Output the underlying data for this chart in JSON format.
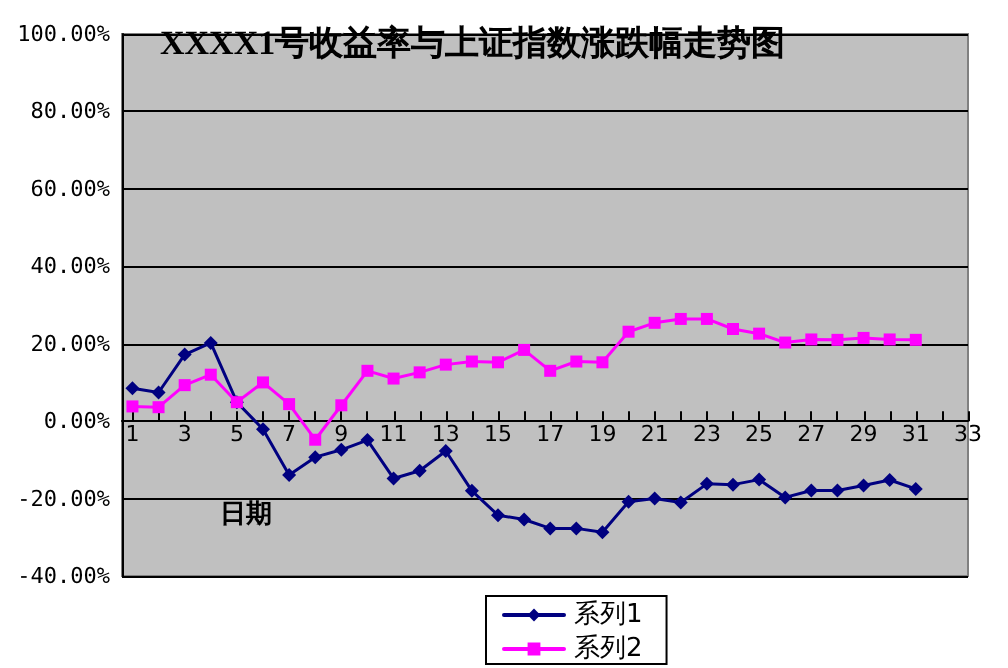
{
  "chart_data": {
    "type": "line",
    "title": "XXXX1号收益率与上证指数涨跌幅走势图",
    "xlabel": "日期",
    "x": [
      1,
      2,
      3,
      4,
      5,
      6,
      7,
      8,
      9,
      10,
      11,
      12,
      13,
      14,
      15,
      16,
      17,
      18,
      19,
      20,
      21,
      22,
      23,
      24,
      25,
      26,
      27,
      28,
      29,
      30,
      31
    ],
    "series": [
      {
        "name": "系列1",
        "color": "#000080",
        "marker": "diamond",
        "values": [
          8.5,
          7.4,
          17.2,
          20.2,
          4.9,
          -2.1,
          -13.9,
          -9.3,
          -7.4,
          -4.9,
          -14.8,
          -12.8,
          -7.7,
          -18,
          -24.3,
          -25.4,
          -27.7,
          -27.7,
          -28.7,
          -20.8,
          -20,
          -21,
          -16.2,
          -16.4,
          -15.1,
          -19.7,
          -17.9,
          -17.9,
          -16.6,
          -15.2,
          -17.5
        ]
      },
      {
        "name": "系列2",
        "color": "#ff00ff",
        "marker": "square",
        "values": [
          3.8,
          3.6,
          9.3,
          12,
          4.9,
          10,
          4.4,
          -4.8,
          4.1,
          13,
          11,
          12.6,
          14.6,
          15.4,
          15.2,
          18.4,
          13,
          15.4,
          15.2,
          23.1,
          25.4,
          26.4,
          26.4,
          23.8,
          22.6,
          20.3,
          21.1,
          21,
          21.5,
          21.1,
          21
        ]
      }
    ],
    "xlim": [
      0.6,
      33
    ],
    "xticks": [
      1,
      3,
      5,
      7,
      9,
      11,
      13,
      15,
      17,
      19,
      21,
      23,
      25,
      27,
      29,
      31,
      33
    ],
    "ylim": [
      -40,
      100
    ],
    "yticks": [
      {
        "value": -40,
        "label": "-40.00%"
      },
      {
        "value": -20,
        "label": "-20.00%"
      },
      {
        "value": 0,
        "label": "0.00%"
      },
      {
        "value": 20,
        "label": "20.00%"
      },
      {
        "value": 40,
        "label": "40.00%"
      },
      {
        "value": 60,
        "label": "60.00%"
      },
      {
        "value": 80,
        "label": "80.00%"
      },
      {
        "value": 100,
        "label": "100.00%"
      }
    ],
    "grid": "y",
    "legend": "bottom",
    "line_style": "solid"
  }
}
